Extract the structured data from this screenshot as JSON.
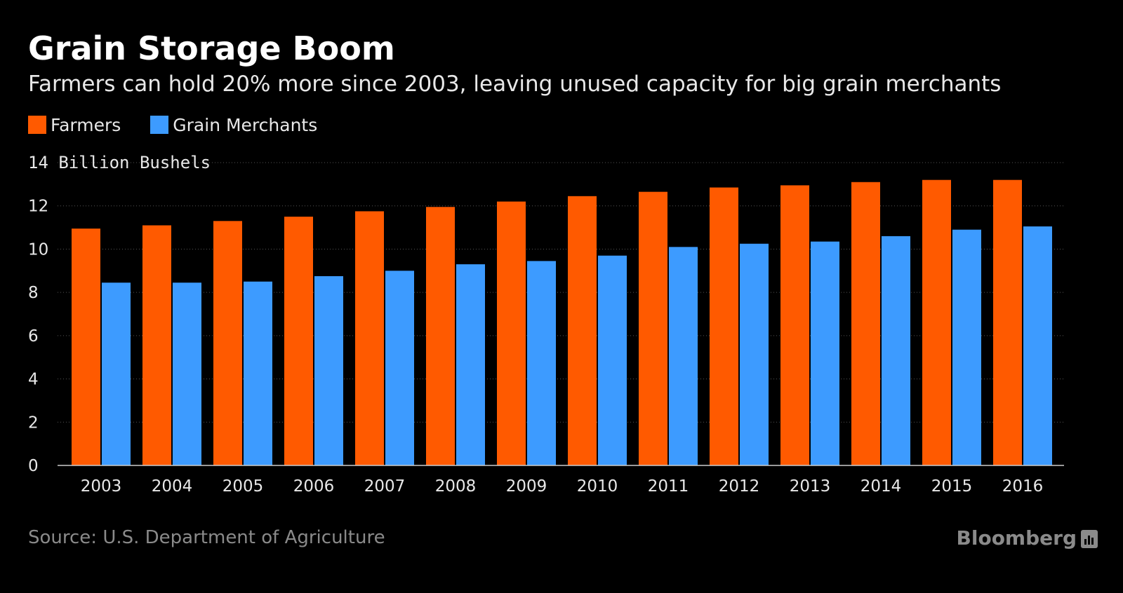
{
  "header": {
    "title": "Grain Storage Boom",
    "subtitle": "Farmers can hold 20% more since 2003, leaving unused capacity for big grain merchants"
  },
  "footer": {
    "source": "Source: U.S. Department of Agriculture",
    "brand": "Bloomberg"
  },
  "chart_data": {
    "type": "bar",
    "title": "Grain Storage Boom",
    "subtitle": "Farmers can hold 20% more since 2003, leaving unused capacity for big grain merchants",
    "ylabel": "Billion Bushels",
    "xlabel": "",
    "ylim": [
      0,
      14
    ],
    "yticks": [
      0,
      2,
      4,
      6,
      8,
      10,
      12,
      14
    ],
    "grid": true,
    "legend_position": "top-left",
    "categories": [
      "2003",
      "2004",
      "2005",
      "2006",
      "2007",
      "2008",
      "2009",
      "2010",
      "2011",
      "2012",
      "2013",
      "2014",
      "2015",
      "2016"
    ],
    "series": [
      {
        "name": "Farmers",
        "color": "#ff5a00",
        "values": [
          10.95,
          11.1,
          11.3,
          11.5,
          11.75,
          11.95,
          12.2,
          12.45,
          12.65,
          12.85,
          12.95,
          13.1,
          13.2,
          13.2
        ]
      },
      {
        "name": "Grain Merchants",
        "color": "#3d9bff",
        "values": [
          8.45,
          8.45,
          8.5,
          8.75,
          9.0,
          9.3,
          9.45,
          9.7,
          10.1,
          10.25,
          10.35,
          10.6,
          10.9,
          11.05
        ]
      }
    ]
  }
}
